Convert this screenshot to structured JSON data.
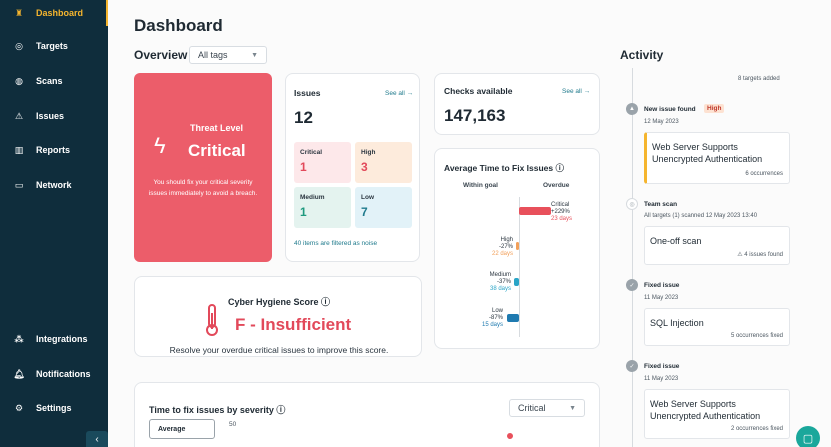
{
  "colors": {
    "sidebar": "#0f2d3c",
    "accent": "#f5b52e",
    "threat": "#ec5d6a",
    "teal": "#1f7a8c"
  },
  "sidebar": {
    "items": [
      {
        "label": "Dashboard",
        "icon": "dashboard-icon"
      },
      {
        "label": "Targets",
        "icon": "targets-icon"
      },
      {
        "label": "Scans",
        "icon": "scans-icon"
      },
      {
        "label": "Issues",
        "icon": "warning-icon"
      },
      {
        "label": "Reports",
        "icon": "reports-icon"
      },
      {
        "label": "Network",
        "icon": "network-icon"
      }
    ],
    "bottom_items": [
      {
        "label": "Integrations",
        "icon": "integrations-icon"
      },
      {
        "label": "Notifications",
        "icon": "bell-icon"
      },
      {
        "label": "Settings",
        "icon": "gear-icon"
      }
    ]
  },
  "page": {
    "title": "Dashboard"
  },
  "overview": {
    "title": "Overview",
    "tag_filter": "All tags"
  },
  "threat": {
    "label": "Threat Level",
    "level": "Critical",
    "description": "You should fix your critical severity issues immediately to avoid a breach."
  },
  "issues": {
    "title": "Issues",
    "see_all": "See all →",
    "total": "12",
    "severities": [
      {
        "label": "Critical",
        "value": "1",
        "bg": "#fde8ea",
        "color": "#e2495a"
      },
      {
        "label": "High",
        "value": "3",
        "bg": "#fdebdc",
        "color": "#e2495a"
      },
      {
        "label": "Medium",
        "value": "1",
        "bg": "#e4f3ef",
        "color": "#1f9a7f"
      },
      {
        "label": "Low",
        "value": "7",
        "bg": "#e2f2f8",
        "color": "#1f7a8c"
      }
    ],
    "noise": "40 items are filtered as noise"
  },
  "checks": {
    "title": "Checks available",
    "see_all": "See all →",
    "value": "147,163"
  },
  "avg_time": {
    "title": "Average Time to Fix Issues",
    "within": "Within goal",
    "overdue": "Overdue",
    "rows": [
      {
        "label": "Critical",
        "pct": "+229%",
        "days": "23 days",
        "color": "#e8505b"
      },
      {
        "label": "High",
        "pct": "-27%",
        "days": "22 days",
        "color": "#f2a05a"
      },
      {
        "label": "Medium",
        "pct": "-37%",
        "days": "38 days",
        "color": "#2aa5c7"
      },
      {
        "label": "Low",
        "pct": "-87%",
        "days": "15 days",
        "color": "#1f7ab0"
      }
    ]
  },
  "hygiene": {
    "title": "Cyber Hygiene Score",
    "grade": "F - Insufficient",
    "desc": "Resolve your overdue critical issues to improve this score."
  },
  "time_to_fix": {
    "title": "Time to fix issues by severity",
    "severity": "Critical",
    "legend": "Average",
    "tick": "50"
  },
  "activity": {
    "title": "Activity",
    "top_meta": "8 targets added",
    "items": [
      {
        "title": "New issue found",
        "badge": "High",
        "date": "12 May 2023",
        "card": "Web Server Supports Unencrypted Authentication",
        "meta": "6 occurrences"
      },
      {
        "title": "Team scan",
        "date": "All targets (1) scanned 12 May 2023 13:40",
        "card": "One-off scan",
        "meta": "4 issues found"
      },
      {
        "title": "Fixed issue",
        "date": "11 May 2023",
        "card": "SQL Injection",
        "meta": "5 occurrences fixed"
      },
      {
        "title": "Fixed issue",
        "date": "11 May 2023",
        "card": "Web Server Supports Unencrypted Authentication",
        "meta": "2 occurrences fixed"
      }
    ]
  }
}
